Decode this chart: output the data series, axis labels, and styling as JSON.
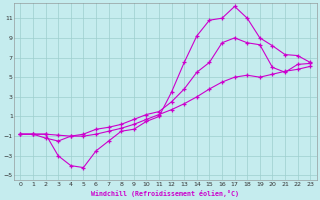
{
  "xlabel": "Windchill (Refroidissement éolien,°C)",
  "xlim": [
    -0.5,
    23.5
  ],
  "ylim": [
    -5.5,
    12.5
  ],
  "xticks": [
    0,
    1,
    2,
    3,
    4,
    5,
    6,
    7,
    8,
    9,
    10,
    11,
    12,
    13,
    14,
    15,
    16,
    17,
    18,
    19,
    20,
    21,
    22,
    23
  ],
  "yticks": [
    -5,
    -3,
    -1,
    1,
    3,
    5,
    7,
    9,
    11
  ],
  "background_color": "#c5ecee",
  "line_color": "#cc00cc",
  "grid_color": "#9ecece",
  "line1_x": [
    0,
    1,
    2,
    3,
    4,
    5,
    6,
    7,
    8,
    9,
    10,
    11,
    12,
    13,
    14,
    15,
    16,
    17,
    18,
    19,
    20,
    21,
    22,
    23
  ],
  "line1_y": [
    -0.8,
    -0.8,
    -0.8,
    -3.0,
    -4.0,
    -4.2,
    -2.5,
    -1.5,
    -0.5,
    -0.3,
    0.5,
    1.0,
    3.5,
    6.5,
    9.2,
    10.8,
    11.0,
    12.2,
    11.0,
    9.0,
    8.2,
    7.3,
    7.2,
    6.5
  ],
  "line2_x": [
    0,
    1,
    2,
    3,
    4,
    5,
    6,
    7,
    8,
    9,
    10,
    11,
    12,
    13,
    14,
    15,
    16,
    17,
    18,
    19,
    20,
    21,
    22,
    23
  ],
  "line2_y": [
    -0.8,
    -0.8,
    -1.2,
    -1.5,
    -1.0,
    -0.8,
    -0.3,
    -0.1,
    0.2,
    0.7,
    1.2,
    1.5,
    2.5,
    3.8,
    5.5,
    6.5,
    8.5,
    9.0,
    8.5,
    8.3,
    6.0,
    5.5,
    6.3,
    6.4
  ],
  "line3_x": [
    0,
    1,
    2,
    3,
    4,
    5,
    6,
    7,
    8,
    9,
    10,
    11,
    12,
    13,
    14,
    15,
    16,
    17,
    18,
    19,
    20,
    21,
    22,
    23
  ],
  "line3_y": [
    -0.8,
    -0.8,
    -0.8,
    -0.9,
    -1.0,
    -1.0,
    -0.8,
    -0.5,
    -0.2,
    0.2,
    0.7,
    1.2,
    1.7,
    2.3,
    3.0,
    3.8,
    4.5,
    5.0,
    5.2,
    5.0,
    5.3,
    5.6,
    5.8,
    6.1
  ]
}
